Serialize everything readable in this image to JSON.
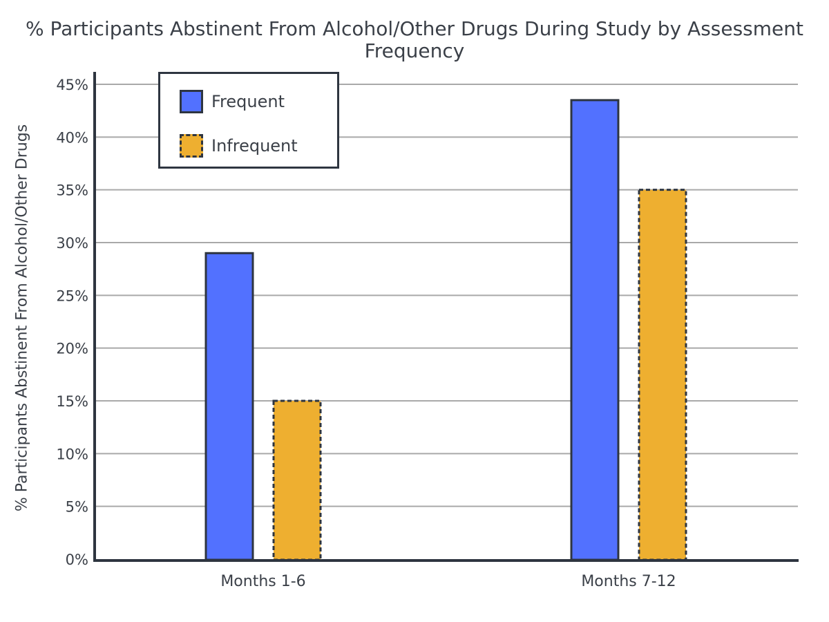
{
  "chart_data": {
    "type": "bar",
    "title": "% Participants Abstinent From Alcohol/Other Drugs During Study by Assessment Frequency",
    "ylabel": "% Participants Abstinent From Alcohol/Other Drugs",
    "xlabel": "",
    "categories": [
      "Months 1-6",
      "Months 7-12"
    ],
    "series": [
      {
        "name": "Frequent",
        "values": [
          29,
          43.5
        ],
        "color": "#5271ff",
        "border": "solid"
      },
      {
        "name": "Infrequent",
        "values": [
          15,
          35
        ],
        "color": "#eeaf30",
        "border": "dashed"
      }
    ],
    "ylim": [
      0,
      45
    ],
    "yticks": [
      "0%",
      "5%",
      "10%",
      "15%",
      "20%",
      "25%",
      "30%",
      "35%",
      "40%",
      "45%"
    ],
    "ytick_values": [
      0,
      5,
      10,
      15,
      20,
      25,
      30,
      35,
      40,
      45
    ],
    "grid": true,
    "legend_position": "top-left"
  }
}
